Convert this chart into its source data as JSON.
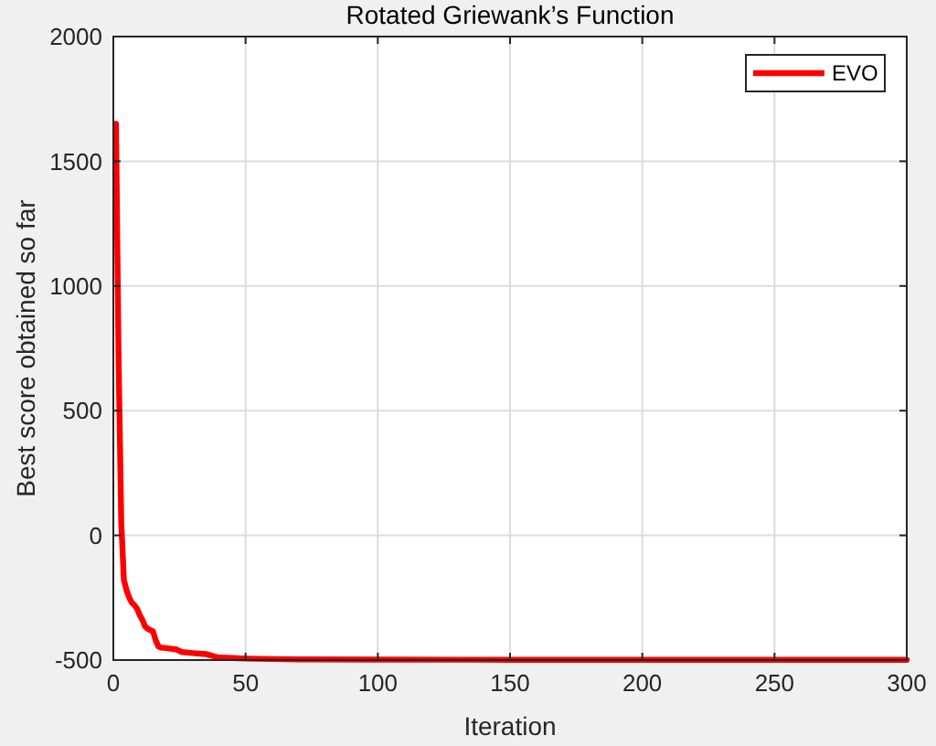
{
  "chart_data": {
    "type": "line",
    "title": "Rotated Griewank’s Function",
    "xlabel": "Iteration",
    "ylabel": "Best score obtained so far",
    "x": [
      1,
      2,
      3,
      4,
      5,
      6,
      7,
      8,
      9,
      10,
      11,
      12,
      13,
      14,
      15,
      16,
      17,
      18,
      20,
      24,
      26,
      30,
      35,
      38,
      40,
      45,
      50,
      60,
      70,
      100,
      150,
      200,
      300
    ],
    "series": [
      {
        "name": "EVO",
        "color": "#ff0000",
        "values": [
          1650,
          700,
          50,
          -180,
          -220,
          -250,
          -270,
          -280,
          -295,
          -320,
          -340,
          -365,
          -375,
          -380,
          -385,
          -420,
          -445,
          -450,
          -452,
          -458,
          -468,
          -472,
          -476,
          -485,
          -490,
          -492,
          -494,
          -496,
          -497,
          -498,
          -499,
          -499,
          -499
        ]
      }
    ],
    "xlim": [
      0,
      300
    ],
    "ylim": [
      -500,
      2000
    ],
    "xticks": [
      0,
      50,
      100,
      150,
      200,
      250,
      300
    ],
    "yticks": [
      -500,
      0,
      500,
      1000,
      1500,
      2000
    ],
    "grid": true,
    "legend": "top right",
    "line_style": "solid"
  }
}
